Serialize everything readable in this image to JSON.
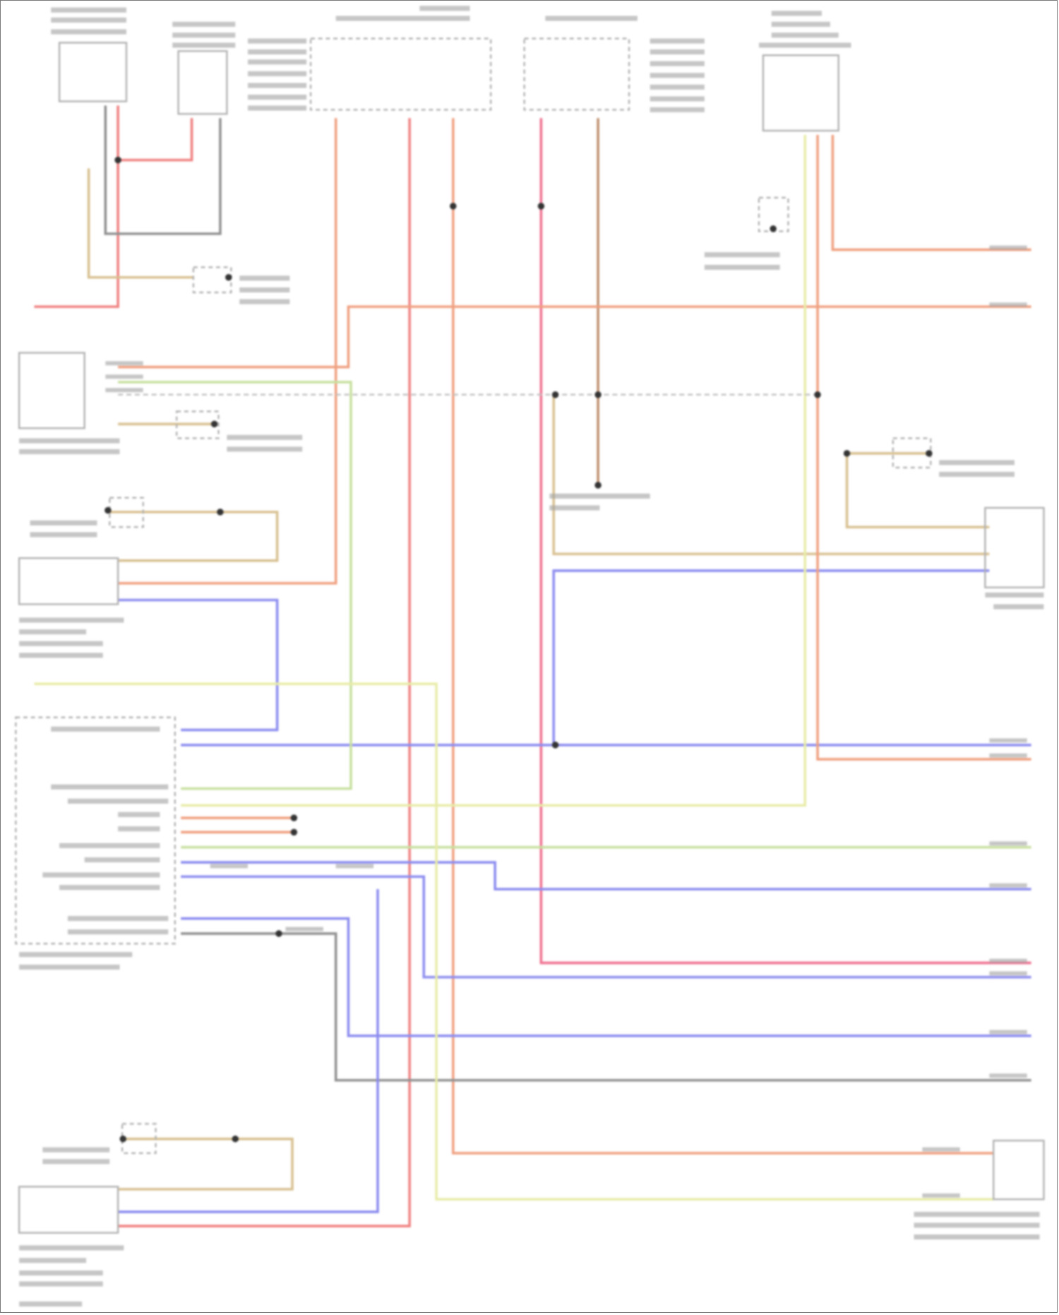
{
  "diagram": {
    "wire_colors": {
      "red": "#f08080",
      "orange": "#f0a080",
      "pink": "#f07090",
      "brown": "#c09070",
      "blue": "#8c8cf0",
      "green": "#c8e0a0",
      "yellow": "#e8eca8",
      "gray": "#909090",
      "tan": "#d8c090"
    },
    "component_outline_color": "#b0b0b0",
    "text_color": "#a0a0a0"
  }
}
